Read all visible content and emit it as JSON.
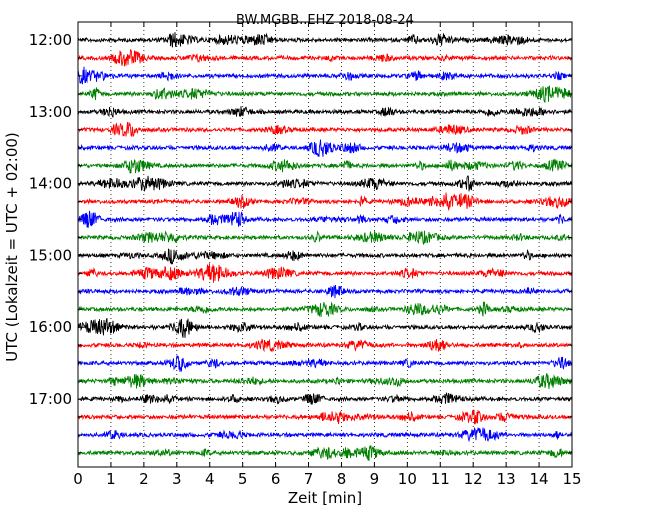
{
  "chart_data": {
    "type": "line",
    "title": "BW.MGBB..EHZ 2018-08-24",
    "xlabel": "Zeit  [min]",
    "ylabel": "UTC (Lokalzeit = UTC + 02:00)",
    "xlim": [
      0,
      15
    ],
    "x_ticks": [
      "0",
      "1",
      "2",
      "3",
      "4",
      "5",
      "6",
      "7",
      "8",
      "9",
      "10",
      "11",
      "12",
      "13",
      "14",
      "15"
    ],
    "y_tick_labels": [
      "12:00",
      "13:00",
      "14:00",
      "15:00",
      "16:00",
      "17:00"
    ],
    "grid": "vertical dotted",
    "trace_colors": [
      "#000000",
      "#ff0000",
      "#0000ff",
      "#008000"
    ],
    "traces": [
      {
        "start": "12:00",
        "color": "#000000"
      },
      {
        "start": "12:15",
        "color": "#ff0000"
      },
      {
        "start": "12:30",
        "color": "#0000ff"
      },
      {
        "start": "12:45",
        "color": "#008000"
      },
      {
        "start": "13:00",
        "color": "#000000"
      },
      {
        "start": "13:15",
        "color": "#ff0000"
      },
      {
        "start": "13:30",
        "color": "#0000ff"
      },
      {
        "start": "13:45",
        "color": "#008000"
      },
      {
        "start": "14:00",
        "color": "#000000"
      },
      {
        "start": "14:15",
        "color": "#ff0000"
      },
      {
        "start": "14:30",
        "color": "#0000ff"
      },
      {
        "start": "14:45",
        "color": "#008000"
      },
      {
        "start": "15:00",
        "color": "#000000"
      },
      {
        "start": "15:15",
        "color": "#ff0000"
      },
      {
        "start": "15:30",
        "color": "#0000ff"
      },
      {
        "start": "15:45",
        "color": "#008000"
      },
      {
        "start": "16:00",
        "color": "#000000"
      },
      {
        "start": "16:15",
        "color": "#ff0000"
      },
      {
        "start": "16:30",
        "color": "#0000ff"
      },
      {
        "start": "16:45",
        "color": "#008000"
      },
      {
        "start": "17:00",
        "color": "#000000"
      },
      {
        "start": "17:15",
        "color": "#ff0000"
      },
      {
        "start": "17:30",
        "color": "#0000ff"
      },
      {
        "start": "17:45",
        "color": "#008000"
      }
    ]
  }
}
